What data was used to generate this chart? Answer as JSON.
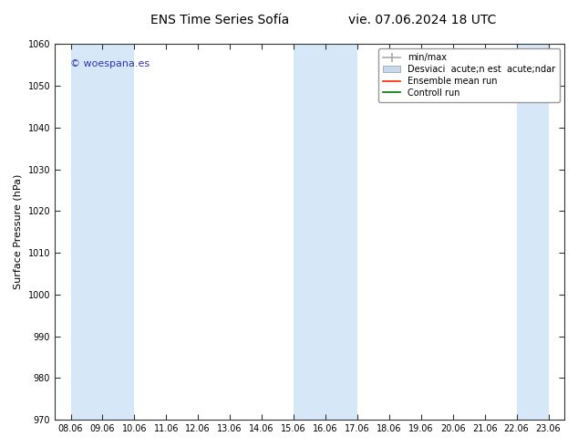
{
  "title_left": "ENS Time Series Sofía",
  "title_right": "vie. 07.06.2024 18 UTC",
  "ylabel": "Surface Pressure (hPa)",
  "ylim": [
    970,
    1060
  ],
  "yticks": [
    970,
    980,
    990,
    1000,
    1010,
    1020,
    1030,
    1040,
    1050,
    1060
  ],
  "x_labels": [
    "08.06",
    "09.06",
    "10.06",
    "11.06",
    "12.06",
    "13.06",
    "14.06",
    "15.06",
    "16.06",
    "17.06",
    "18.06",
    "19.06",
    "20.06",
    "21.06",
    "22.06",
    "23.06"
  ],
  "watermark": "© woespana.es",
  "watermark_color": "#3333bb",
  "bg_color": "#ffffff",
  "plot_bg_color": "#ffffff",
  "light_blue": "#d6e8f7",
  "legend_minmax_label": "min/max",
  "legend_std_label": "Desviaci  acute;n est  acute;ndar",
  "legend_ensemble_label": "Ensemble mean run",
  "legend_control_label": "Controll run",
  "legend_minmax_color": "#aaaaaa",
  "legend_std_color": "#c8daea",
  "legend_ensemble_color": "#ff2200",
  "legend_control_color": "#007700",
  "shaded_x_starts": [
    0.0,
    2.0,
    7.0,
    9.0,
    14.0
  ],
  "shaded_x_ends": [
    2.0,
    2.0,
    9.0,
    9.0,
    15.0
  ],
  "title_fontsize": 10,
  "axis_label_fontsize": 8,
  "tick_fontsize": 7,
  "legend_fontsize": 7
}
